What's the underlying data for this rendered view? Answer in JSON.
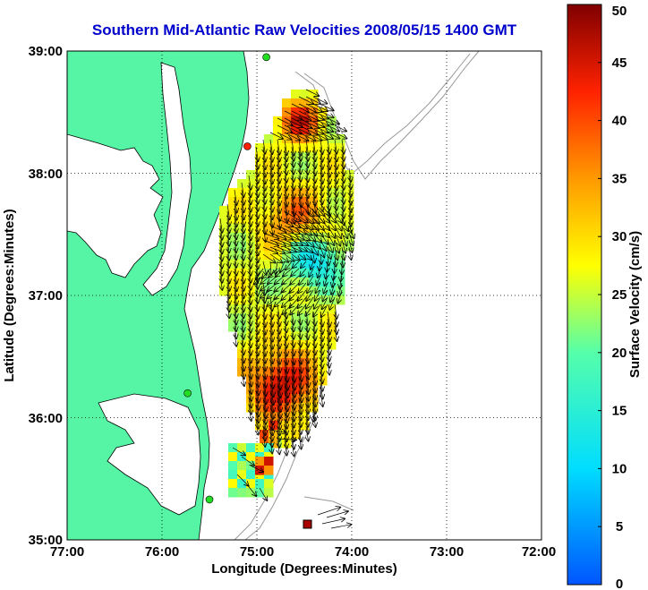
{
  "title": "Southern Mid-Atlantic Raw Velocities 2008/05/15 1400 GMT",
  "map": {
    "lon_range": [
      -77,
      -72
    ],
    "lat_range": [
      35,
      39
    ],
    "x_ticks": [
      "77:00",
      "76:00",
      "75:00",
      "74:00",
      "73:00",
      "72:00"
    ],
    "y_ticks": [
      "39:00",
      "38:00",
      "37:00",
      "36:00",
      "35:00"
    ],
    "xlabel": "Longitude (Degrees:Minutes)",
    "ylabel": "Latitude (Degrees:Minutes)",
    "grid": "dotted",
    "land_color": "#55f5a5",
    "water_color": "#ffffff",
    "coast_color": "#000000",
    "bathymetry_color": "#999999",
    "arrow_color": "#000000"
  },
  "colorbar": {
    "label": "Surface Velocity (cm/s)",
    "min": 0,
    "max": 50,
    "ticks": [
      "50",
      "45",
      "40",
      "35",
      "30",
      "25",
      "20",
      "15",
      "10",
      "5",
      "0"
    ],
    "colormap": "jet"
  },
  "stations": [
    {
      "lon": -74.9,
      "lat": 38.95,
      "color": "#22dd22"
    },
    {
      "lon": -75.1,
      "lat": 38.22,
      "color": "#ff2200"
    },
    {
      "lon": -75.73,
      "lat": 36.2,
      "color": "#22dd22"
    },
    {
      "lon": -75.5,
      "lat": 35.33,
      "color": "#22dd22"
    }
  ]
}
